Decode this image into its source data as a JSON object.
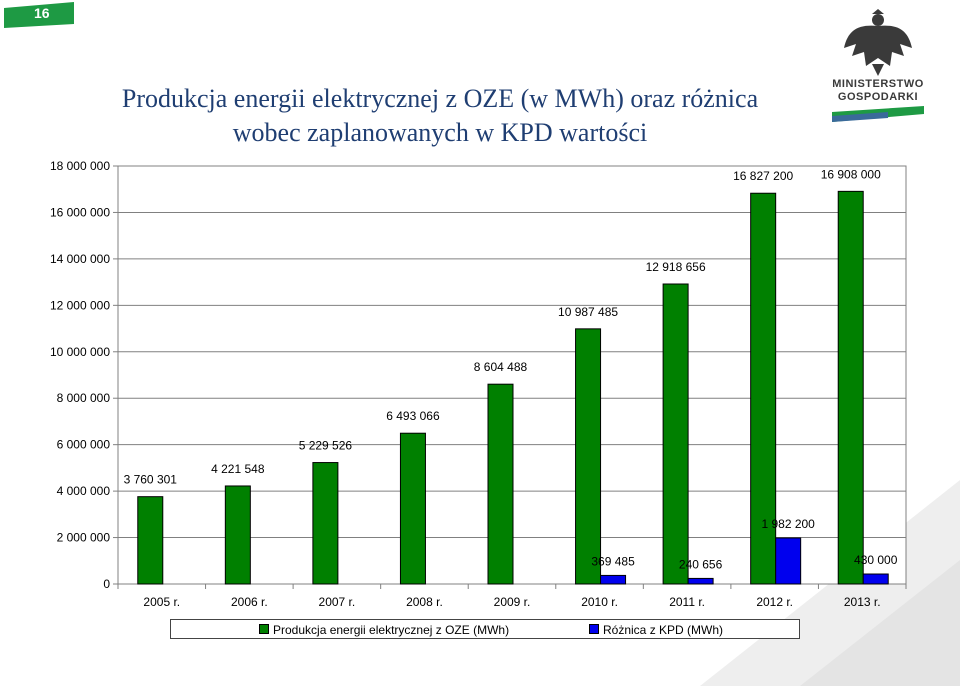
{
  "page": {
    "number": "16",
    "accent": "#1e9a44"
  },
  "title": {
    "line1": "Produkcja energii elektrycznej z OZE (w MWh) oraz różnica",
    "line2": "wobec zaplanowanych w KPD wartości"
  },
  "logo": {
    "line1": "MINISTERSTWO",
    "line2": "GOSPODARKI",
    "icon": "eagle-emblem-icon"
  },
  "chart_data": {
    "type": "bar",
    "categories": [
      "2005 r.",
      "2006 r.",
      "2007 r.",
      "2008 r.",
      "2009 r.",
      "2010 r.",
      "2011 r.",
      "2012 r.",
      "2013 r."
    ],
    "series": [
      {
        "name": "Produkcja energii elektrycznej z OZE (MWh)",
        "color": "#008000",
        "values": [
          3760301,
          4221548,
          5229526,
          6493066,
          8604488,
          10987485,
          12918656,
          16827200,
          16908000
        ],
        "labels": [
          "3 760 301",
          "4 221 548",
          "5 229 526",
          "6 493 066",
          "8 604 488",
          "10 987 485",
          "12 918 656",
          "16 827 200",
          "16 908 000"
        ]
      },
      {
        "name": "Różnica z KPD (MWh)",
        "color": "#0000ee",
        "values": [
          null,
          null,
          null,
          null,
          null,
          369485,
          240656,
          1982200,
          430000
        ],
        "labels": [
          "",
          "",
          "",
          "",
          "",
          "369 485",
          "240 656",
          "1 982 200",
          "430 000"
        ]
      }
    ],
    "ylim": [
      0,
      18000000
    ],
    "yticks": [
      0,
      2000000,
      4000000,
      6000000,
      8000000,
      10000000,
      12000000,
      14000000,
      16000000,
      18000000
    ],
    "ytick_labels": [
      "0",
      "2 000 000",
      "4 000 000",
      "6 000 000",
      "8 000 000",
      "10 000 000",
      "12 000 000",
      "14 000 000",
      "16 000 000",
      "18 000 000"
    ],
    "grid": true,
    "legend": "bottom"
  }
}
